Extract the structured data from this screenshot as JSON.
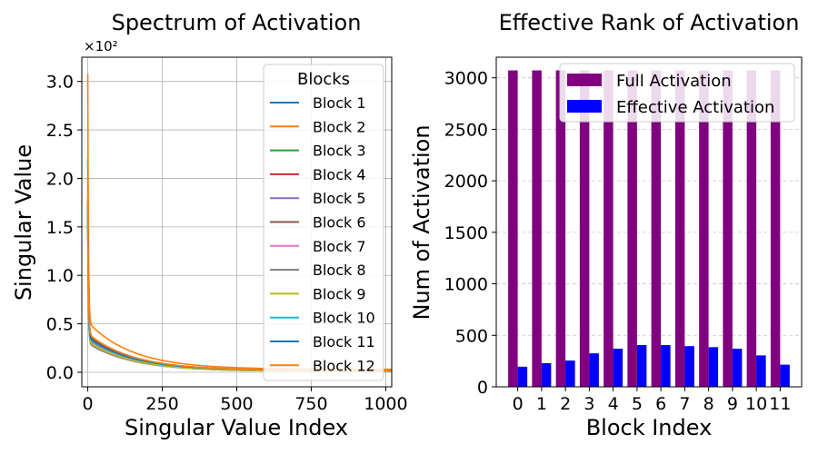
{
  "chart_data": [
    {
      "type": "line",
      "title": "Spectrum of Activation",
      "xlabel": "Singular Value Index",
      "ylabel": "Singular Value",
      "y_scale_label": "×10²",
      "xlim": [
        -20,
        1020
      ],
      "ylim": [
        -0.15,
        3.25
      ],
      "x_ticks": [
        0,
        250,
        500,
        750,
        1000
      ],
      "y_ticks": [
        "0.0",
        "0.5",
        "1.0",
        "1.5",
        "2.0",
        "2.5",
        "3.0"
      ],
      "grid": true,
      "legend_title": "Blocks",
      "legend_position": "top-right",
      "n_points": 1024,
      "series": [
        {
          "name": "Block 1",
          "color": "#1f77b4",
          "start": 2.2,
          "knee": 0.4,
          "tail": 0.02
        },
        {
          "name": "Block 2",
          "color": "#ff7f0e",
          "start": 3.08,
          "knee": 0.52,
          "tail": 0.03
        },
        {
          "name": "Block 3",
          "color": "#2ca02c",
          "start": 1.8,
          "knee": 0.38,
          "tail": 0.02
        },
        {
          "name": "Block 4",
          "color": "#d62728",
          "start": 1.75,
          "knee": 0.37,
          "tail": 0.02
        },
        {
          "name": "Block 5",
          "color": "#9467bd",
          "start": 1.7,
          "knee": 0.36,
          "tail": 0.02
        },
        {
          "name": "Block 6",
          "color": "#8c564b",
          "start": 1.65,
          "knee": 0.34,
          "tail": 0.01
        },
        {
          "name": "Block 7",
          "color": "#e377c2",
          "start": 1.6,
          "knee": 0.33,
          "tail": 0.01
        },
        {
          "name": "Block 8",
          "color": "#7f7f7f",
          "start": 1.55,
          "knee": 0.3,
          "tail": 0.01
        },
        {
          "name": "Block 9",
          "color": "#bcbd22",
          "start": 1.6,
          "knee": 0.32,
          "tail": 0.01
        },
        {
          "name": "Block 10",
          "color": "#17becf",
          "start": 1.65,
          "knee": 0.35,
          "tail": 0.02
        },
        {
          "name": "Block 11",
          "color": "#1f77b4",
          "start": 1.7,
          "knee": 0.36,
          "tail": 0.02
        },
        {
          "name": "Block 12",
          "color": "#ff7f0e",
          "start": 1.85,
          "knee": 0.4,
          "tail": 0.02
        }
      ]
    },
    {
      "type": "bar",
      "title": "Effective Rank of Activation",
      "xlabel": "Block Index",
      "ylabel": "Num of Activation",
      "categories": [
        "0",
        "1",
        "2",
        "3",
        "4",
        "5",
        "6",
        "7",
        "8",
        "9",
        "10",
        "11"
      ],
      "ylim": [
        0,
        3200
      ],
      "y_ticks": [
        0,
        500,
        1000,
        1500,
        2000,
        2500,
        3000
      ],
      "grid": true,
      "legend_position": "top-right",
      "series": [
        {
          "name": "Full Activation",
          "color": "#800080",
          "values": [
            3072,
            3072,
            3072,
            3072,
            3072,
            3072,
            3072,
            3072,
            3072,
            3072,
            3072,
            3072
          ]
        },
        {
          "name": "Effective Activation",
          "color": "#0000ff",
          "values": [
            195,
            230,
            255,
            325,
            370,
            405,
            405,
            395,
            385,
            370,
            305,
            215
          ]
        }
      ]
    }
  ]
}
